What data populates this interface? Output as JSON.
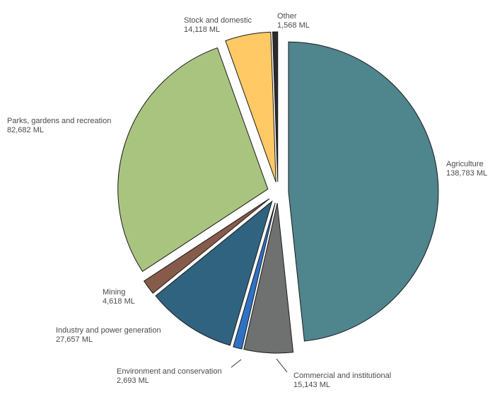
{
  "chart_data": {
    "type": "pie",
    "title": "",
    "unit": "ML",
    "slices": [
      {
        "name": "Agriculture",
        "value": 138783,
        "value_label": "138,783 ML",
        "color": "#4f858d"
      },
      {
        "name": "Commercial and institutional",
        "value": 15143,
        "value_label": "15,143 ML",
        "color": "#6f7170"
      },
      {
        "name": "Environment and conservation",
        "value": 2693,
        "value_label": "2,693 ML",
        "color": "#2f72c4"
      },
      {
        "name": "Industry and power generation",
        "value": 27657,
        "value_label": "27,657 ML",
        "color": "#30637f"
      },
      {
        "name": "Mining",
        "value": 4618,
        "value_label": "4,618 ML",
        "color": "#875b4a"
      },
      {
        "name": "Parks, gardens and recreation",
        "value": 82682,
        "value_label": "82,682 ML",
        "color": "#a9c47f"
      },
      {
        "name": "Stock and domestic",
        "value": 14118,
        "value_label": "14,118 ML",
        "color": "#ffc966"
      },
      {
        "name": "Other",
        "value": 1568,
        "value_label": "1,568 ML",
        "color": "#2b2b2b"
      }
    ]
  }
}
